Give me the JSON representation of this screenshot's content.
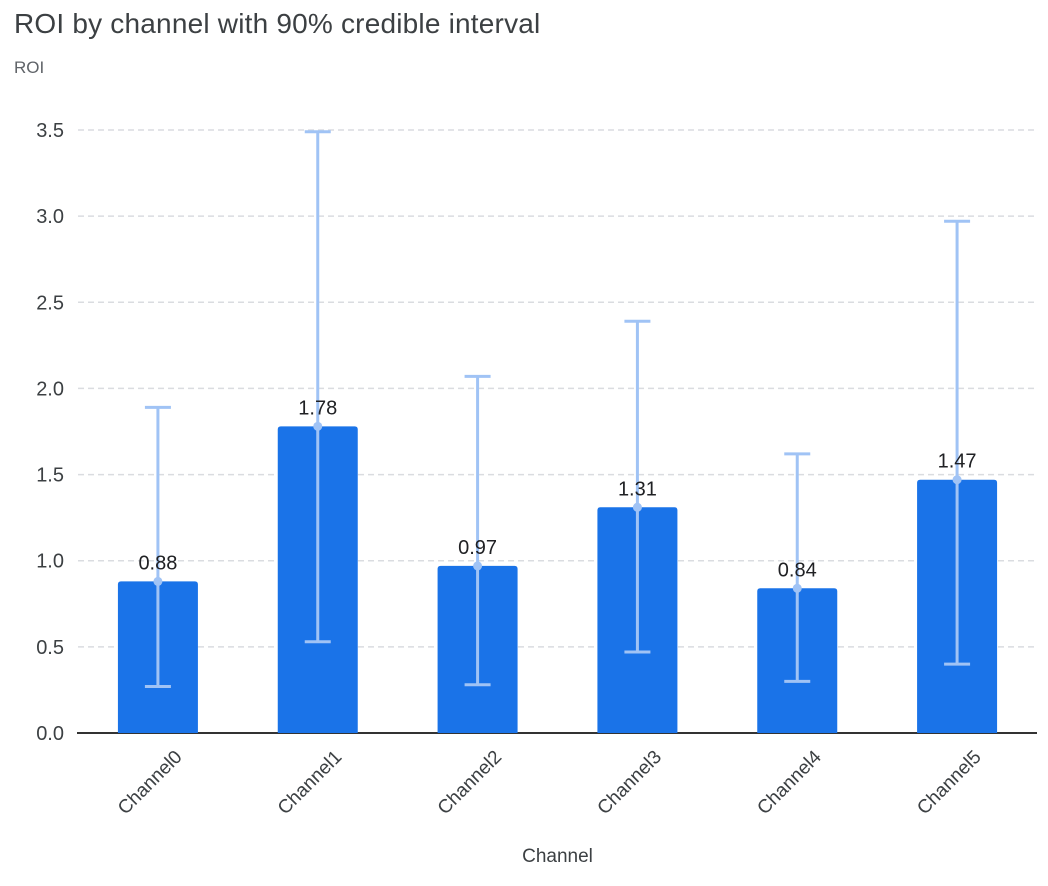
{
  "title": "ROI by channel with 90% credible interval",
  "chart_data": {
    "type": "bar",
    "title": "ROI by channel with 90% credible interval",
    "xlabel": "Channel",
    "ylabel": "ROI",
    "categories": [
      "Channel0",
      "Channel1",
      "Channel2",
      "Channel3",
      "Channel4",
      "Channel5"
    ],
    "values": [
      0.88,
      1.78,
      0.97,
      1.31,
      0.84,
      1.47
    ],
    "value_labels": [
      "0.88",
      "1.78",
      "0.97",
      "1.31",
      "0.84",
      "1.47"
    ],
    "error_low": [
      0.27,
      0.53,
      0.28,
      0.47,
      0.3,
      0.4
    ],
    "error_high": [
      1.89,
      3.49,
      2.07,
      2.39,
      1.62,
      2.97
    ],
    "ylim": [
      0,
      3.5
    ],
    "ytick_step": 0.5,
    "ytick_labels": [
      "0.0",
      "0.5",
      "1.0",
      "1.5",
      "2.0",
      "2.5",
      "3.0",
      "3.5"
    ],
    "grid": true,
    "legend": "none",
    "bar_color": "#1a73e8",
    "error_color": "#a0c3f5",
    "grid_color": "#dadce0",
    "axis_color": "#333333",
    "tick_label_color": "#3c4043",
    "value_label_color": "#202124"
  }
}
